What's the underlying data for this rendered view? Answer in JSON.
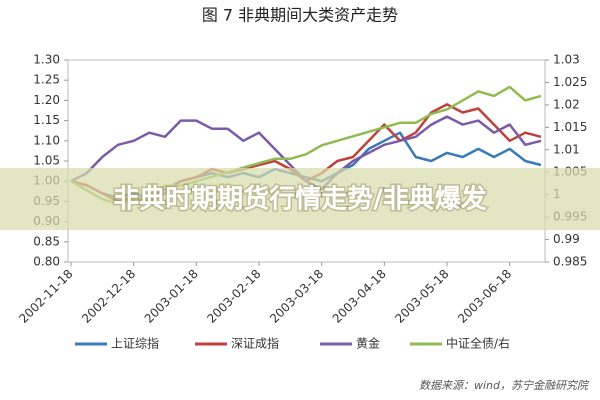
{
  "chart_data": {
    "type": "line",
    "title": "图 7  非典期间大类资产走势",
    "categories": [
      "2002-11-18",
      null,
      null,
      null,
      "2002-12-18",
      null,
      null,
      null,
      "2003-01-18",
      null,
      null,
      null,
      "2003-02-18",
      null,
      null,
      null,
      "2003-03-18",
      null,
      null,
      null,
      "2003-04-18",
      null,
      null,
      null,
      "2003-05-18",
      null,
      null,
      null,
      "2003-06-18",
      null,
      null
    ],
    "series": [
      {
        "name": "上证综指",
        "color": "#3a78b8",
        "values": [
          1.0,
          0.99,
          0.97,
          0.96,
          0.97,
          0.96,
          0.98,
          1.0,
          1.01,
          1.02,
          1.01,
          1.02,
          1.01,
          1.03,
          1.02,
          1.01,
          1.0,
          1.02,
          1.04,
          1.08,
          1.1,
          1.12,
          1.06,
          1.05,
          1.07,
          1.06,
          1.08,
          1.06,
          1.08,
          1.05,
          1.04
        ]
      },
      {
        "name": "深证成指",
        "color": "#c0413c",
        "values": [
          1.0,
          0.99,
          0.97,
          0.95,
          0.96,
          0.95,
          0.97,
          1.0,
          1.01,
          1.03,
          1.02,
          1.03,
          1.04,
          1.05,
          1.03,
          1.0,
          1.02,
          1.05,
          1.06,
          1.1,
          1.14,
          1.1,
          1.12,
          1.17,
          1.19,
          1.17,
          1.18,
          1.14,
          1.1,
          1.12,
          1.11
        ]
      },
      {
        "name": "黄金",
        "color": "#7b5aa6",
        "values": [
          1.0,
          1.02,
          1.06,
          1.09,
          1.1,
          1.12,
          1.11,
          1.15,
          1.15,
          1.13,
          1.13,
          1.1,
          1.12,
          1.08,
          1.04,
          1.0,
          0.98,
          1.02,
          1.05,
          1.07,
          1.09,
          1.1,
          1.11,
          1.14,
          1.16,
          1.14,
          1.15,
          1.12,
          1.14,
          1.09,
          1.1
        ]
      },
      {
        "name": "中证全债/右",
        "color": "#8fbb4f",
        "axis": "y2",
        "values": [
          1.003,
          1.001,
          0.999,
          0.998,
          0.999,
          1.0,
          1.002,
          1.002,
          1.003,
          1.004,
          1.005,
          1.006,
          1.007,
          1.008,
          1.008,
          1.009,
          1.011,
          1.012,
          1.013,
          1.014,
          1.015,
          1.016,
          1.016,
          1.018,
          1.019,
          1.021,
          1.023,
          1.022,
          1.024,
          1.021,
          1.022
        ]
      }
    ],
    "ylim": [
      0.8,
      1.3
    ],
    "yticks": [
      {
        "value": 0.8,
        "label": "0.80"
      },
      {
        "value": 0.85,
        "label": "0.85"
      },
      {
        "value": 0.9,
        "label": "0.90"
      },
      {
        "value": 0.95,
        "label": "0.95"
      },
      {
        "value": 1,
        "label": "1.00"
      },
      {
        "value": 1.05,
        "label": "1.05"
      },
      {
        "value": 1.1,
        "label": "1.10"
      },
      {
        "value": 1.15,
        "label": "1.15"
      },
      {
        "value": 1.2,
        "label": "1.20"
      },
      {
        "value": 1.25,
        "label": "1.25"
      },
      {
        "value": 1.3,
        "label": "1.30"
      }
    ],
    "y2lim": [
      0.985,
      1.03
    ],
    "y2ticks": [
      0.985,
      0.99,
      0.995,
      1,
      1.005,
      1.01,
      1.015,
      1.02,
      1.025,
      1.03
    ],
    "grid": false,
    "legend": "bottom",
    "source": "数据来源：wind，苏宁金融研究院"
  },
  "banner": "非典时期期货行情走势/非典爆发"
}
